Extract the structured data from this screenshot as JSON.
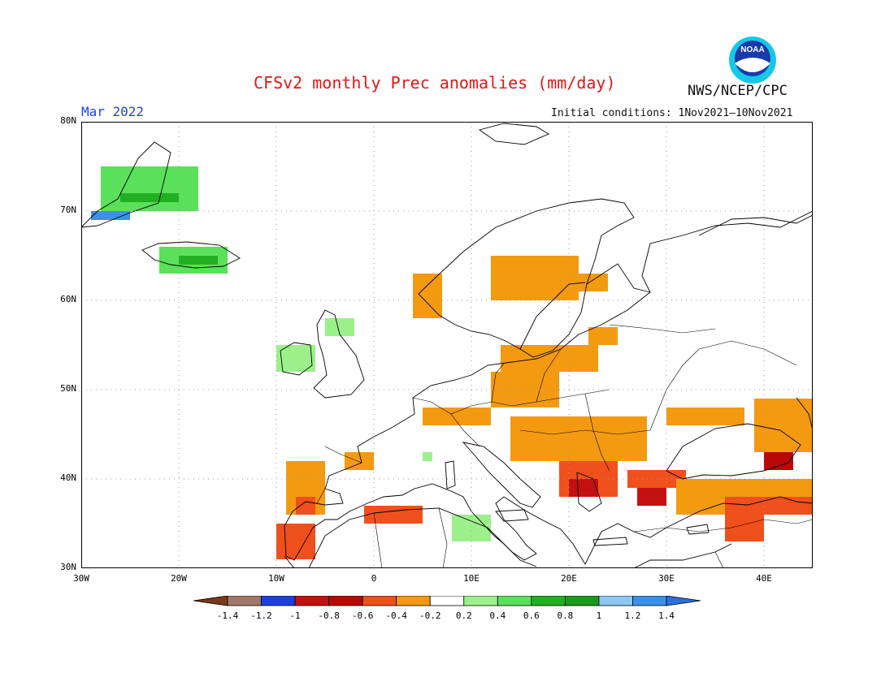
{
  "title": "CFSv2 monthly Prec anomalies (mm/day)",
  "agency": "NWS/NCEP/CPC",
  "valid_month": "Mar 2022",
  "initial_conditions": "Initial conditions: 1Nov2021—10Nov2021",
  "logo": {
    "text": "NOAA",
    "icon": "noaa-logo"
  },
  "axes": {
    "lat_ticks": [
      "80N",
      "70N",
      "60N",
      "50N",
      "40N",
      "30N"
    ],
    "lon_ticks": [
      "30W",
      "20W",
      "10W",
      "0",
      "10E",
      "20E",
      "30E",
      "40E"
    ]
  },
  "colorbar": {
    "labels": [
      "-1.4",
      "-1.2",
      "-1",
      "-0.8",
      "-0.6",
      "-0.4",
      "-0.2",
      "0.2",
      "0.4",
      "0.6",
      "0.8",
      "1",
      "1.2",
      "1.4"
    ],
    "colors": [
      "#7a3a1a",
      "#a0786a",
      "#1e3ee0",
      "#c41010",
      "#ba0808",
      "#f0501c",
      "#f49a10",
      "#ffffff",
      "#9cf08c",
      "#5ae05a",
      "#22b022",
      "#1a9a1a",
      "#8cc8f0",
      "#3a90e8",
      "#2a70dc"
    ]
  },
  "chart_data": {
    "type": "heatmap",
    "title": "CFSv2 monthly Prec anomalies (mm/day)",
    "subtitle": "Mar 2022",
    "xlabel": "",
    "ylabel": "",
    "xlim": [
      -30,
      45
    ],
    "ylim": [
      30,
      80
    ],
    "grid": true,
    "units": "mm/day",
    "cell_size_deg": 1,
    "regions": [
      {
        "lon": [
          -28,
          -18
        ],
        "lat": [
          70,
          75
        ],
        "value": 0.5
      },
      {
        "lon": [
          -26,
          -20
        ],
        "lat": [
          71,
          72
        ],
        "value": 0.7
      },
      {
        "lon": [
          -29,
          -25
        ],
        "lat": [
          69,
          70
        ],
        "value": 1.2
      },
      {
        "lon": [
          -22,
          -15
        ],
        "lat": [
          63,
          66
        ],
        "value": 0.5
      },
      {
        "lon": [
          -20,
          -16
        ],
        "lat": [
          64,
          65
        ],
        "value": 0.7
      },
      {
        "lon": [
          -10,
          -6
        ],
        "lat": [
          52,
          55
        ],
        "value": 0.3
      },
      {
        "lon": [
          -5,
          -2
        ],
        "lat": [
          56,
          58
        ],
        "value": 0.3
      },
      {
        "lon": [
          4,
          7
        ],
        "lat": [
          58,
          63
        ],
        "value": -0.3
      },
      {
        "lon": [
          12,
          21
        ],
        "lat": [
          60,
          65
        ],
        "value": -0.3
      },
      {
        "lon": [
          21,
          24
        ],
        "lat": [
          61,
          63
        ],
        "value": -0.3
      },
      {
        "lon": [
          13,
          23
        ],
        "lat": [
          52,
          55
        ],
        "value": -0.3
      },
      {
        "lon": [
          22,
          25
        ],
        "lat": [
          55,
          57
        ],
        "value": -0.3
      },
      {
        "lon": [
          12,
          19
        ],
        "lat": [
          48,
          52
        ],
        "value": -0.3
      },
      {
        "lon": [
          5,
          12
        ],
        "lat": [
          46,
          48
        ],
        "value": -0.3
      },
      {
        "lon": [
          14,
          28
        ],
        "lat": [
          42,
          47
        ],
        "value": -0.3
      },
      {
        "lon": [
          -3,
          0
        ],
        "lat": [
          41,
          43
        ],
        "value": -0.3
      },
      {
        "lon": [
          -9,
          -5
        ],
        "lat": [
          36,
          42
        ],
        "value": -0.3
      },
      {
        "lon": [
          -8,
          -6
        ],
        "lat": [
          36,
          38
        ],
        "value": -0.5
      },
      {
        "lon": [
          -10,
          -6
        ],
        "lat": [
          31,
          35
        ],
        "value": -0.6
      },
      {
        "lon": [
          -1,
          5
        ],
        "lat": [
          35,
          37
        ],
        "value": -0.5
      },
      {
        "lon": [
          19,
          25
        ],
        "lat": [
          38,
          42
        ],
        "value": -0.6
      },
      {
        "lon": [
          20,
          23
        ],
        "lat": [
          38,
          40
        ],
        "value": -0.9
      },
      {
        "lon": [
          27,
          30
        ],
        "lat": [
          37,
          39
        ],
        "value": -0.9
      },
      {
        "lon": [
          26,
          32
        ],
        "lat": [
          39,
          41
        ],
        "value": -0.6
      },
      {
        "lon": [
          31,
          45
        ],
        "lat": [
          36,
          40
        ],
        "value": -0.3
      },
      {
        "lon": [
          36,
          45
        ],
        "lat": [
          36,
          38
        ],
        "value": -0.5
      },
      {
        "lon": [
          36,
          40
        ],
        "lat": [
          33,
          36
        ],
        "value": -0.5
      },
      {
        "lon": [
          30,
          38
        ],
        "lat": [
          46,
          48
        ],
        "value": -0.3
      },
      {
        "lon": [
          39,
          45
        ],
        "lat": [
          43,
          49
        ],
        "value": -0.3
      },
      {
        "lon": [
          40,
          43
        ],
        "lat": [
          41,
          43
        ],
        "value": -0.7
      },
      {
        "lon": [
          8,
          12
        ],
        "lat": [
          33,
          36
        ],
        "value": 0.3
      },
      {
        "lon": [
          5,
          6
        ],
        "lat": [
          42,
          43
        ],
        "value": 0.3
      }
    ]
  }
}
